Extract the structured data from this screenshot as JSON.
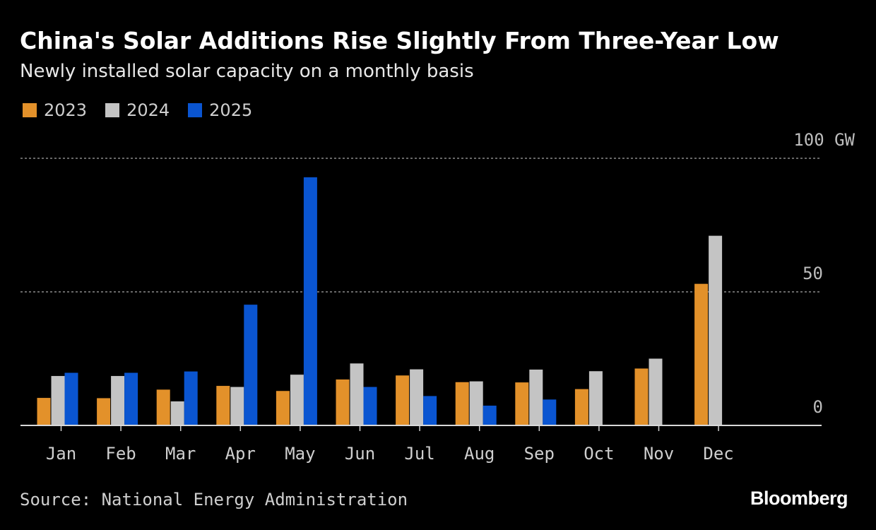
{
  "header": {
    "title": "China's Solar Additions Rise Slightly From Three-Year Low",
    "subtitle": "Newly installed solar capacity on a monthly basis"
  },
  "legend": [
    {
      "label": "2023",
      "color": "#e3912a"
    },
    {
      "label": "2024",
      "color": "#c4c4c4"
    },
    {
      "label": "2025",
      "color": "#0a55d1"
    }
  ],
  "footer": {
    "source": "Source: National Energy Administration",
    "brand": "Bloomberg"
  },
  "chart_data": {
    "type": "bar",
    "title": "China's Solar Additions Rise Slightly From Three-Year Low",
    "subtitle": "Newly installed solar capacity on a monthly basis",
    "xlabel": "",
    "ylabel": "GW",
    "ylim": [
      0,
      100
    ],
    "yticks": [
      {
        "value": 0,
        "label": "0"
      },
      {
        "value": 50,
        "label": "50"
      },
      {
        "value": 100,
        "label": "100 GW"
      }
    ],
    "grid": true,
    "legend_position": "top-left",
    "categories": [
      "Jan",
      "Feb",
      "Mar",
      "Apr",
      "May",
      "Jun",
      "Jul",
      "Aug",
      "Sep",
      "Oct",
      "Nov",
      "Dec"
    ],
    "series": [
      {
        "name": "2023",
        "color": "#e3912a",
        "values": [
          10.3,
          10.2,
          13.4,
          14.8,
          12.9,
          17.2,
          18.7,
          16.2,
          16.1,
          13.6,
          21.3,
          53.0
        ]
      },
      {
        "name": "2024",
        "color": "#c4c4c4",
        "values": [
          18.5,
          18.5,
          9.0,
          14.4,
          19.0,
          23.2,
          21.0,
          16.5,
          20.9,
          20.3,
          25.0,
          71.0
        ]
      },
      {
        "name": "2025",
        "color": "#0a55d1",
        "values": [
          19.7,
          19.7,
          20.2,
          45.2,
          92.9,
          14.4,
          11.0,
          7.4,
          9.7,
          null,
          null,
          null
        ]
      }
    ]
  }
}
